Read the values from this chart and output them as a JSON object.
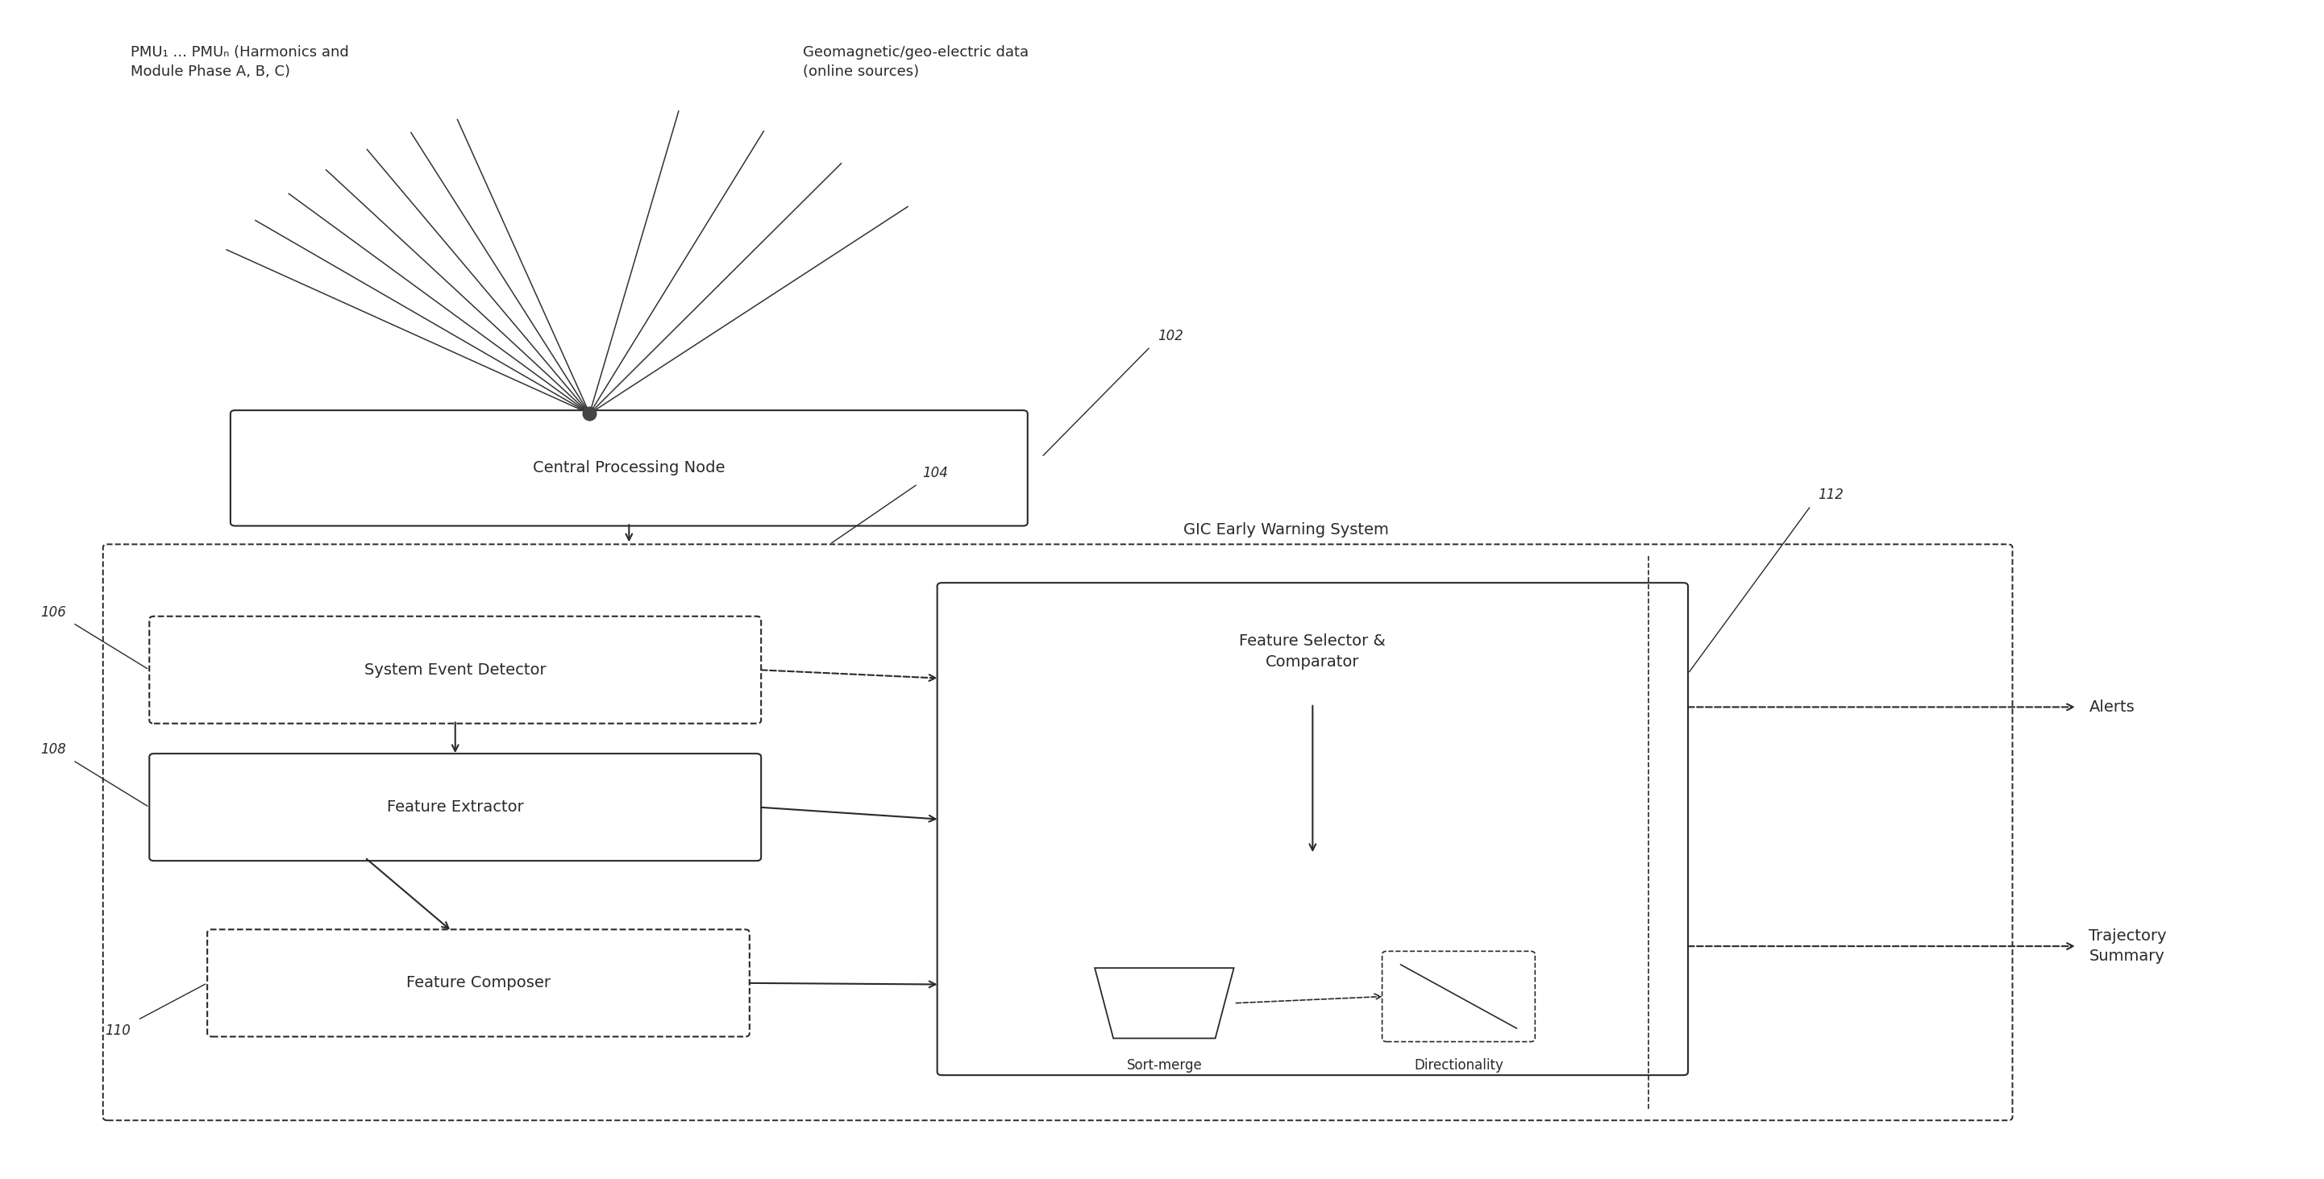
{
  "bg_color": "#ffffff",
  "line_color": "#2a2a2a",
  "fig_width": 28.83,
  "fig_height": 14.63,
  "label_pmu": "PMU₁ ... PMUₙ (Harmonics and\nModule Phase A, B, C)",
  "label_geo": "Geomagnetic/geo-electric data\n(online sources)",
  "label_cpn": "Central Processing Node",
  "label_102": "102",
  "label_104": "104",
  "label_106": "106",
  "label_108": "108",
  "label_110": "110",
  "label_112": "112",
  "label_gic": "GIC Early Warning System",
  "label_sed": "System Event Detector",
  "label_fe": "Feature Extractor",
  "label_fc": "Feature Composer",
  "label_fsc": "Feature Selector &\nComparator",
  "label_sm": "Sort-merge",
  "label_dir": "Directionality",
  "label_alerts": "Alerts",
  "label_traj": "Trajectory\nSummary"
}
